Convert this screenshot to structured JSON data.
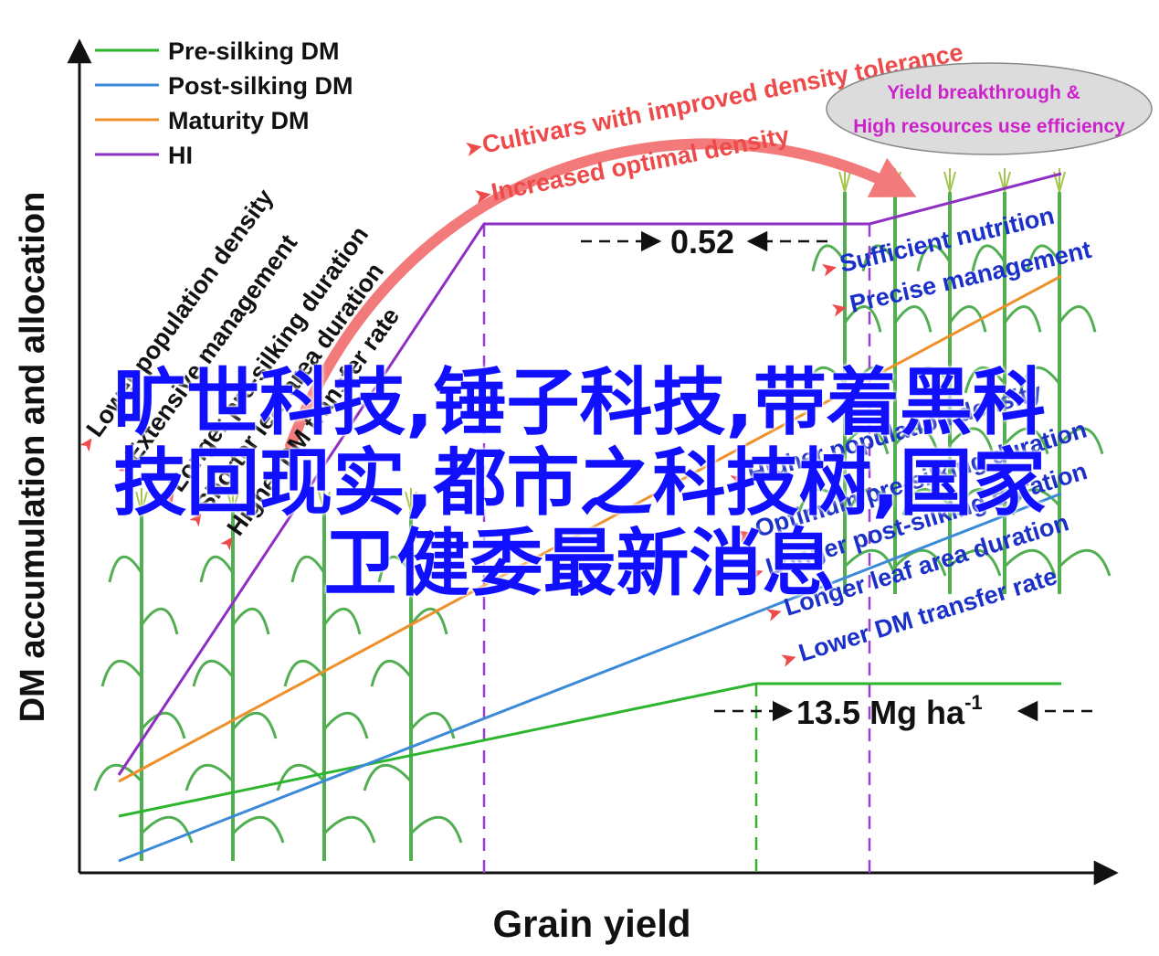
{
  "legend": [
    {
      "label": "Pre-silking DM",
      "color": "#2db52d"
    },
    {
      "label": "Post-silking DM",
      "color": "#3b8ad8"
    },
    {
      "label": "Maturity DM",
      "color": "#ee8f2a"
    },
    {
      "label": "HI",
      "color": "#8e2fc4"
    }
  ],
  "axes": {
    "y_label": "DM accumulation and allocation",
    "x_label": "Grain yield"
  },
  "left_labels": [
    "Lower population density",
    "Extensive management",
    "Longer pre-silking duration",
    "Shorter leaf area duration",
    "Higher DM transfer rate"
  ],
  "top_labels": {
    "line1": "Cultivars with improved density tolerance",
    "line2": "Increased optimal density"
  },
  "ellipse": {
    "line1": "Yield breakthrough &",
    "line2": "High resources use efficiency"
  },
  "right_labels": [
    "Sufficient nutrition",
    "Precise management",
    "Higher population density",
    "Optimum pre-silking duration",
    "Longer post-silking duration",
    "Longer leaf area duration",
    "Lower DM transfer rate"
  ],
  "annotations": {
    "hi_gap": "0.52",
    "yield_value": "13.5 Mg ha",
    "yield_exp": "-1"
  },
  "overlay_text": [
    "旷世科技,锤子科技,带着黑科",
    "技回现实,都市之科技树,国家",
    "卫健委最新消息"
  ],
  "colors": {
    "red_label": "#ee4a4a",
    "blue_label": "#1b2fc9",
    "ellipse_text": "#cc22cc",
    "overlay": "#1010ff",
    "plant": "#3fa63f"
  }
}
